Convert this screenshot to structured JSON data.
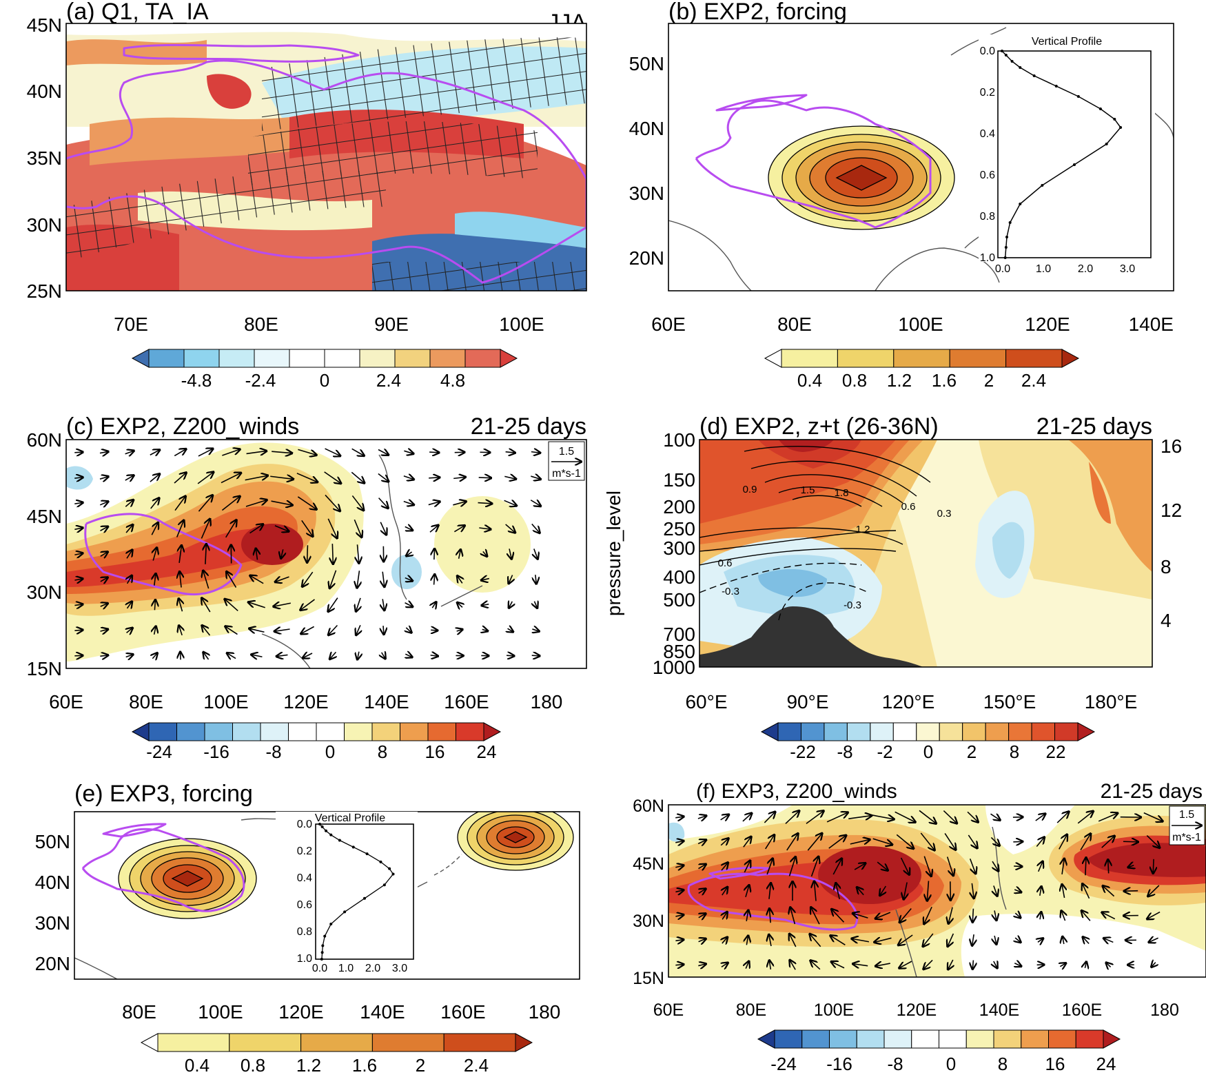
{
  "chart_data": [
    {
      "id": "a",
      "type": "heatmap",
      "title": "(a) Q1, TA_IA",
      "season": "JJA",
      "x_ticks": [
        "70E",
        "80E",
        "90E",
        "100E"
      ],
      "y_ticks": [
        "45N",
        "40N",
        "35N",
        "30N",
        "25N"
      ],
      "xlim": [
        65,
        105
      ],
      "ylim": [
        25,
        45
      ],
      "colorbar": {
        "labels": [
          "-4.8",
          "-2.4",
          "0",
          "2.4",
          "4.8"
        ],
        "colors": [
          "#3f6fb0",
          "#5fa8d8",
          "#8fd4ee",
          "#c6ecf5",
          "#e8f7fb",
          "#ffffff",
          "#ffffff",
          "#f6f2c4",
          "#f2d27e",
          "#ec9a5e",
          "#e36a58",
          "#d9403c"
        ]
      }
    },
    {
      "id": "b",
      "type": "heatmap",
      "title": "(b) EXP2, forcing",
      "x_ticks": [
        "60E",
        "80E",
        "100E",
        "120E",
        "140E"
      ],
      "y_ticks": [
        "50N",
        "40N",
        "30N",
        "20N"
      ],
      "xlim": [
        60,
        140
      ],
      "ylim": [
        15,
        55
      ],
      "colorbar": {
        "labels": [
          "0.4",
          "0.8",
          "1.2",
          "1.6",
          "2",
          "2.4"
        ],
        "colors": [
          "#ffffff",
          "#f6f0a0",
          "#efd46a",
          "#e6aa48",
          "#df7c30",
          "#cf4e1c",
          "#a8280f"
        ]
      },
      "inset": {
        "title": "Vertical Profile",
        "x_ticks": [
          "0.0",
          "1.0",
          "2.0",
          "3.0"
        ],
        "y_ticks": [
          "0.0",
          "0.2",
          "0.4",
          "0.6",
          "0.8",
          "1.0"
        ],
        "sigma": [
          0.0,
          0.02,
          0.05,
          0.08,
          0.12,
          0.17,
          0.22,
          0.28,
          0.33,
          0.37,
          0.45,
          0.55,
          0.65,
          0.74,
          0.83,
          0.9,
          0.95,
          1.0
        ],
        "value": [
          0.0,
          0.1,
          0.25,
          0.45,
          0.8,
          1.35,
          1.9,
          2.45,
          2.8,
          2.95,
          2.6,
          1.8,
          1.0,
          0.45,
          0.2,
          0.12,
          0.1,
          0.08
        ]
      }
    },
    {
      "id": "c",
      "type": "heatmap",
      "title": "(c) EXP2, Z200_winds",
      "period": "21-25 days",
      "x_ticks": [
        "60E",
        "80E",
        "100E",
        "120E",
        "140E",
        "160E",
        "180"
      ],
      "y_ticks": [
        "60N",
        "45N",
        "30N",
        "15N"
      ],
      "xlim": [
        60,
        190
      ],
      "ylim": [
        15,
        60
      ],
      "ref_vector": {
        "value": "1.5",
        "unit": "m*s-1"
      },
      "colorbar": {
        "labels": [
          "-24",
          "-16",
          "-8",
          "0",
          "8",
          "16",
          "24"
        ],
        "colors": [
          "#1d3b8c",
          "#2f66b4",
          "#5294d0",
          "#7fbfe3",
          "#b2def0",
          "#def2f8",
          "#ffffff",
          "#ffffff",
          "#f7f3b4",
          "#f3d27a",
          "#ee9e4e",
          "#e66a30",
          "#d93a2a",
          "#b01d1f"
        ]
      }
    },
    {
      "id": "d",
      "type": "heatmap",
      "title": "(d) EXP2, z+t (26-36N)",
      "period": "21-25 days",
      "ylabel": "pressure_level",
      "x_ticks": [
        "60°E",
        "90°E",
        "120°E",
        "150°E",
        "180°E"
      ],
      "y_ticks": [
        "100",
        "150",
        "200",
        "250",
        "300",
        "400",
        "500",
        "700",
        "850",
        "1000"
      ],
      "y2_ticks": [
        "16",
        "12",
        "8",
        "4"
      ],
      "contour_labels": [
        "0.9",
        "1.5",
        "1.8",
        "0.6",
        "0.3",
        "1.2",
        "0.6",
        "-0.3",
        "-0.3"
      ],
      "colorbar": {
        "labels": [
          "-22",
          "-8",
          "-2",
          "0",
          "2",
          "8",
          "22"
        ],
        "colors": [
          "#1d3b8c",
          "#2f66b4",
          "#5294d0",
          "#7fbfe3",
          "#b2def0",
          "#def2f8",
          "#ffffff",
          "#fbf7d2",
          "#f6e29a",
          "#f2c46a",
          "#ee9e4e",
          "#e97637",
          "#e0542c",
          "#d13a28",
          "#b21f20"
        ]
      }
    },
    {
      "id": "e",
      "type": "heatmap",
      "title": "(e) EXP3, forcing",
      "x_ticks": [
        "80E",
        "100E",
        "120E",
        "140E",
        "160E",
        "180"
      ],
      "y_ticks": [
        "50N",
        "40N",
        "30N",
        "20N"
      ],
      "xlim": [
        65,
        190
      ],
      "ylim": [
        18,
        55
      ],
      "colorbar": {
        "labels": [
          "0.4",
          "0.8",
          "1.2",
          "1.6",
          "2",
          "2.4"
        ],
        "colors": [
          "#ffffff",
          "#f6f0a0",
          "#efd46a",
          "#e6aa48",
          "#df7c30",
          "#cf4e1c",
          "#a8280f"
        ]
      },
      "inset": {
        "title": "Vertical Profile",
        "x_ticks": [
          "0.0",
          "1.0",
          "2.0",
          "3.0"
        ],
        "y_ticks": [
          "0.0",
          "0.2",
          "0.4",
          "0.6",
          "0.8",
          "1.0"
        ],
        "sigma": [
          0.0,
          0.02,
          0.05,
          0.08,
          0.12,
          0.17,
          0.22,
          0.28,
          0.33,
          0.37,
          0.45,
          0.55,
          0.65,
          0.74,
          0.83,
          0.9,
          0.95,
          1.0
        ],
        "value": [
          0.0,
          0.1,
          0.25,
          0.45,
          0.8,
          1.35,
          1.9,
          2.45,
          2.8,
          2.95,
          2.6,
          1.8,
          1.0,
          0.45,
          0.2,
          0.12,
          0.1,
          0.08
        ]
      }
    },
    {
      "id": "f",
      "type": "heatmap",
      "title": "(f) EXP3, Z200_winds",
      "period": "21-25 days",
      "x_ticks": [
        "60E",
        "80E",
        "100E",
        "120E",
        "140E",
        "160E",
        "180"
      ],
      "y_ticks": [
        "60N",
        "45N",
        "30N",
        "15N"
      ],
      "xlim": [
        60,
        190
      ],
      "ylim": [
        15,
        60
      ],
      "ref_vector": {
        "value": "1.5",
        "unit": "m*s-1"
      },
      "colorbar": {
        "labels": [
          "-24",
          "-16",
          "-8",
          "0",
          "8",
          "16",
          "24"
        ],
        "colors": [
          "#1d3b8c",
          "#2f66b4",
          "#5294d0",
          "#7fbfe3",
          "#b2def0",
          "#def2f8",
          "#ffffff",
          "#ffffff",
          "#f7f3b4",
          "#f3d27a",
          "#ee9e4e",
          "#e66a30",
          "#d93a2a",
          "#b01d1f"
        ]
      }
    }
  ]
}
